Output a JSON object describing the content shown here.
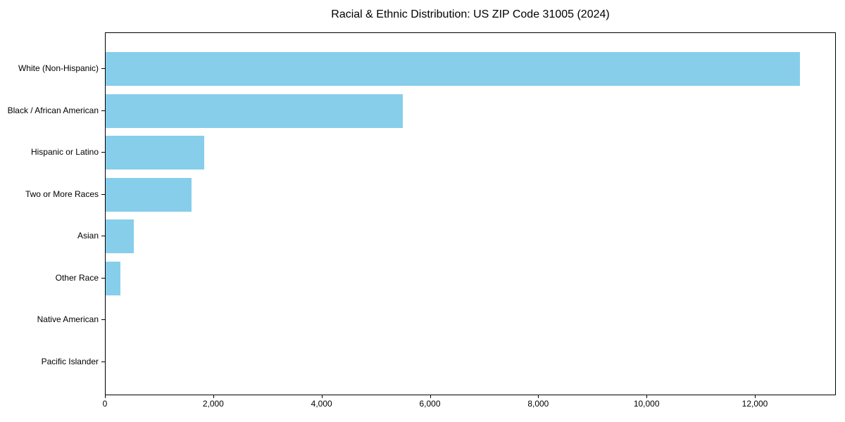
{
  "figure": {
    "background": "#ffffff"
  },
  "chart_data": {
    "type": "bar",
    "orientation": "horizontal",
    "title": "Racial & Ethnic Distribution: US ZIP Code 31005 (2024)",
    "xlabel": "",
    "ylabel": "",
    "categories": [
      "White (Non-Hispanic)",
      "Black / African American",
      "Hispanic or Latino",
      "Two or More Races",
      "Asian",
      "Other Race",
      "Native American",
      "Pacific Islander"
    ],
    "values": [
      12820,
      5485,
      1820,
      1585,
      520,
      275,
      0,
      0
    ],
    "xlim": [
      0,
      13495
    ],
    "xticks": [
      0,
      2000,
      4000,
      6000,
      8000,
      10000,
      12000
    ],
    "xtick_labels": [
      "0",
      "2,000",
      "4,000",
      "6,000",
      "8,000",
      "10,000",
      "12,000"
    ],
    "bar_color": "#87CEEB",
    "frame_color": "#000000",
    "text_color": "#000000",
    "grid": false,
    "legend": "none"
  }
}
